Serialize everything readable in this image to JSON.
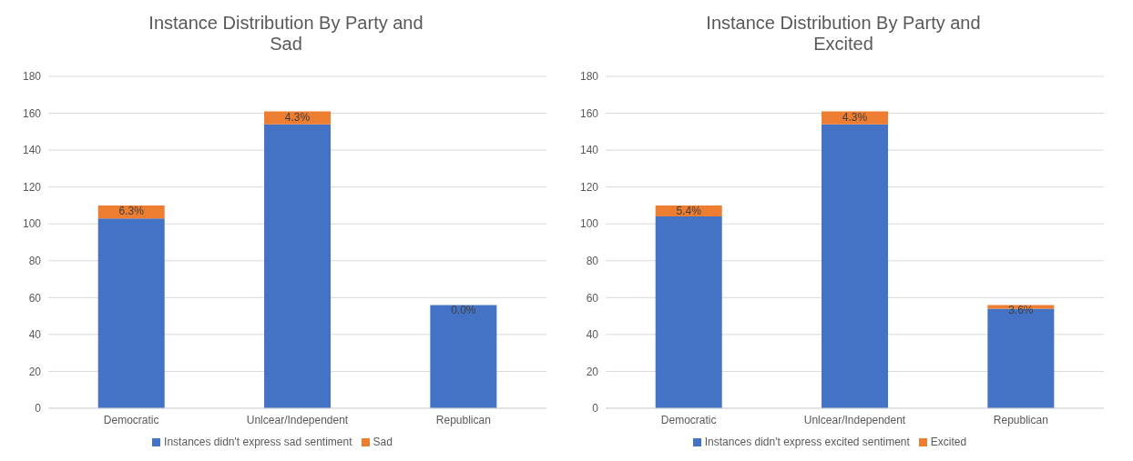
{
  "chart_data": [
    {
      "type": "bar",
      "title": "Instance Distribution By Party and Sad",
      "categories": [
        "Democratic",
        "Unlcear/Independent",
        "Republican"
      ],
      "stacked": true,
      "ylim": [
        0,
        180
      ],
      "yticks": [
        0,
        20,
        40,
        60,
        80,
        100,
        120,
        140,
        160,
        180
      ],
      "grid": "y",
      "legend": "bottom",
      "series": [
        {
          "name": "Instances didn't express sad sentiment",
          "color": "#4472c4",
          "values": [
            103,
            154,
            56
          ]
        },
        {
          "name": "Sad",
          "color": "#ed7d31",
          "values": [
            7,
            7,
            0
          ]
        }
      ],
      "annotations": [
        {
          "text": "6.3%",
          "x": "Democratic",
          "y": 110
        },
        {
          "text": "4.3%",
          "x": "Unlcear/Independent",
          "y": 161
        },
        {
          "text": "0.0%",
          "x": "Republican",
          "y": 56
        }
      ]
    },
    {
      "type": "bar",
      "title": "Instance Distribution By Party and Excited",
      "categories": [
        "Democratic",
        "Unlcear/Independent",
        "Republican"
      ],
      "stacked": true,
      "ylim": [
        0,
        180
      ],
      "yticks": [
        0,
        20,
        40,
        60,
        80,
        100,
        120,
        140,
        160,
        180
      ],
      "grid": "y",
      "legend": "bottom",
      "series": [
        {
          "name": "Instances didn't express excited sentiment",
          "color": "#4472c4",
          "values": [
            104,
            154,
            54
          ]
        },
        {
          "name": "Excited",
          "color": "#ed7d31",
          "values": [
            6,
            7,
            2
          ]
        }
      ],
      "annotations": [
        {
          "text": "5.4%",
          "x": "Democratic",
          "y": 110
        },
        {
          "text": "4.3%",
          "x": "Unlcear/Independent",
          "y": 161
        },
        {
          "text": "3.6%",
          "x": "Republican",
          "y": 56
        }
      ]
    }
  ]
}
